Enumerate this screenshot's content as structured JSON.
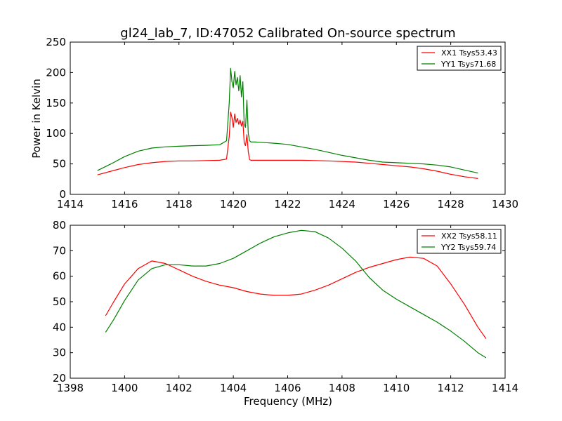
{
  "chart_data": [
    {
      "type": "line",
      "title": "gl24_lab_7, ID:47052 Calibrated On-source spectrum",
      "xlabel": "",
      "ylabel": "Power in Kelvin",
      "xlim": [
        1414,
        1430
      ],
      "ylim": [
        0,
        250
      ],
      "xticks": [
        1414,
        1416,
        1418,
        1420,
        1422,
        1424,
        1426,
        1428,
        1430
      ],
      "yticks": [
        0,
        50,
        100,
        150,
        200,
        250
      ],
      "xtick_labels": [
        "1414",
        "1416",
        "1418",
        "1420",
        "1422",
        "1424",
        "1426",
        "1428",
        "1430"
      ],
      "ytick_labels": [
        "0",
        "50",
        "100",
        "150",
        "200",
        "250"
      ],
      "grid": false,
      "legend_position": "top-right",
      "series": [
        {
          "name": "XX1 Tsys53.43",
          "color": "#ff0000",
          "x": [
            1415.0,
            1415.5,
            1416.0,
            1416.5,
            1417.0,
            1417.5,
            1418.0,
            1418.5,
            1419.0,
            1419.5,
            1419.75,
            1419.85,
            1419.9,
            1419.95,
            1420.0,
            1420.05,
            1420.1,
            1420.15,
            1420.2,
            1420.25,
            1420.3,
            1420.35,
            1420.4,
            1420.45,
            1420.5,
            1420.55,
            1420.6,
            1420.65,
            1420.8,
            1421.0,
            1421.5,
            1422.0,
            1422.5,
            1423.0,
            1423.5,
            1424.0,
            1424.5,
            1425.0,
            1425.5,
            1426.0,
            1426.5,
            1427.0,
            1427.5,
            1428.0,
            1428.5,
            1429.0
          ],
          "y": [
            32,
            38,
            44,
            49,
            52,
            54,
            55,
            55,
            55.5,
            56,
            58,
            95,
            135,
            126,
            110,
            132,
            118,
            125,
            115,
            122,
            112,
            120,
            85,
            80,
            98,
            70,
            57,
            56,
            56,
            56,
            56,
            56,
            56,
            55.5,
            55,
            54,
            53,
            51,
            49,
            47,
            45,
            42,
            38,
            33,
            29,
            26
          ]
        },
        {
          "name": "YY1 Tsys71.68",
          "color": "#008000",
          "x": [
            1415.0,
            1415.5,
            1416.0,
            1416.5,
            1417.0,
            1417.5,
            1418.0,
            1418.5,
            1419.0,
            1419.5,
            1419.75,
            1419.85,
            1419.9,
            1419.95,
            1420.0,
            1420.05,
            1420.1,
            1420.15,
            1420.2,
            1420.25,
            1420.3,
            1420.35,
            1420.4,
            1420.45,
            1420.5,
            1420.55,
            1420.6,
            1420.65,
            1420.8,
            1421.0,
            1421.5,
            1422.0,
            1422.5,
            1423.0,
            1423.5,
            1424.0,
            1424.5,
            1425.0,
            1425.5,
            1426.0,
            1426.5,
            1427.0,
            1427.5,
            1428.0,
            1428.5,
            1429.0
          ],
          "y": [
            39,
            50,
            62,
            71,
            76,
            78,
            79,
            80,
            80.5,
            81.5,
            88,
            150,
            207,
            185,
            175,
            202,
            180,
            192,
            170,
            195,
            160,
            185,
            115,
            110,
            155,
            100,
            88,
            86,
            86,
            85.5,
            84,
            82,
            78,
            74,
            69,
            64,
            60,
            56,
            53,
            52,
            51,
            50,
            48,
            45,
            40,
            35
          ]
        }
      ]
    },
    {
      "type": "line",
      "title": "",
      "xlabel": "Frequency (MHz)",
      "ylabel": "",
      "xlim": [
        1398,
        1414
      ],
      "ylim": [
        20,
        80
      ],
      "xticks": [
        1398,
        1400,
        1402,
        1404,
        1406,
        1408,
        1410,
        1412,
        1414
      ],
      "yticks": [
        20,
        30,
        40,
        50,
        60,
        70,
        80
      ],
      "xtick_labels": [
        "1398",
        "1400",
        "1402",
        "1404",
        "1406",
        "1408",
        "1410",
        "1412",
        "1414"
      ],
      "ytick_labels": [
        "20",
        "30",
        "40",
        "50",
        "60",
        "70",
        "80"
      ],
      "grid": false,
      "legend_position": "top-right",
      "series": [
        {
          "name": "XX2 Tsys58.11",
          "color": "#ff0000",
          "x": [
            1399.3,
            1399.6,
            1400.0,
            1400.5,
            1401.0,
            1401.5,
            1402.0,
            1402.5,
            1403.0,
            1403.5,
            1404.0,
            1404.5,
            1405.0,
            1405.5,
            1406.0,
            1406.5,
            1407.0,
            1407.5,
            1408.0,
            1408.5,
            1409.0,
            1409.5,
            1410.0,
            1410.5,
            1411.0,
            1411.5,
            1412.0,
            1412.5,
            1413.0,
            1413.3
          ],
          "y": [
            44.5,
            50,
            57,
            63,
            66,
            65,
            62.5,
            60,
            58,
            56.5,
            55.5,
            54,
            53,
            52.5,
            52.5,
            53,
            54.5,
            56.5,
            59,
            61.5,
            63.5,
            65,
            66.5,
            67.5,
            67,
            64,
            57,
            49,
            40,
            35.5
          ]
        },
        {
          "name": "YY2 Tsys59.74",
          "color": "#008000",
          "x": [
            1399.3,
            1399.6,
            1400.0,
            1400.5,
            1401.0,
            1401.5,
            1402.0,
            1402.5,
            1403.0,
            1403.5,
            1404.0,
            1404.5,
            1405.0,
            1405.5,
            1406.0,
            1406.5,
            1407.0,
            1407.5,
            1408.0,
            1408.5,
            1409.0,
            1409.5,
            1410.0,
            1410.5,
            1411.0,
            1411.5,
            1412.0,
            1412.5,
            1413.0,
            1413.3
          ],
          "y": [
            38,
            43,
            50.5,
            58.5,
            63,
            64.5,
            64.5,
            64,
            64,
            65,
            67,
            70,
            73,
            75.5,
            77,
            78,
            77.5,
            75,
            71,
            66,
            59.5,
            54.5,
            51,
            48,
            45,
            42,
            38.5,
            34.5,
            30,
            28
          ]
        }
      ]
    }
  ]
}
